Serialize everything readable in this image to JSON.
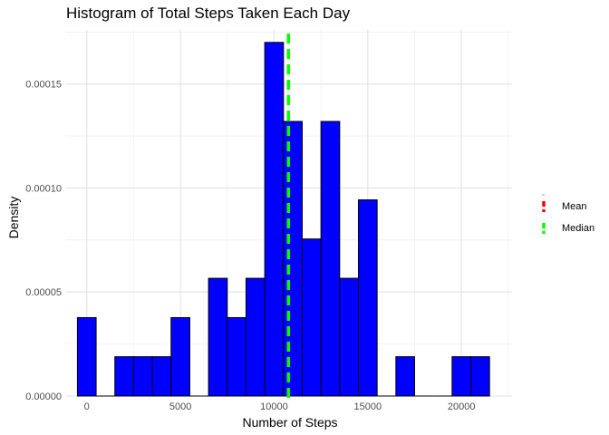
{
  "chart_data": {
    "type": "bar",
    "title": "Histogram of Total Steps Taken Each Day",
    "xlabel": "Number of Steps",
    "ylabel": "Density",
    "xlim": [
      -1100,
      22700
    ],
    "ylim": [
      0,
      0.000176
    ],
    "bin_width": 1000,
    "bin_centers": [
      0,
      2000,
      3000,
      4000,
      5000,
      7000,
      8000,
      9000,
      10000,
      11000,
      12000,
      13000,
      14000,
      15000,
      17000,
      20000,
      21000
    ],
    "values": [
      3.77e-05,
      1.89e-05,
      1.89e-05,
      1.89e-05,
      3.77e-05,
      5.66e-05,
      3.77e-05,
      5.66e-05,
      0.00017,
      0.000132,
      7.55e-05,
      0.000132,
      5.66e-05,
      9.43e-05,
      1.89e-05,
      1.89e-05,
      1.89e-05
    ],
    "x_ticks": [
      0,
      5000,
      10000,
      15000,
      20000
    ],
    "x_tick_labels": [
      "0",
      "5000",
      "10000",
      "15000",
      "20000"
    ],
    "y_ticks": [
      0,
      5e-05,
      0.0001,
      0.00015
    ],
    "y_tick_labels": [
      "0.00000",
      "0.00005",
      "0.00010",
      "0.00015"
    ],
    "grid": true,
    "bar_fill": "#0000ff",
    "bar_outline": "#000000",
    "reference_lines": [
      {
        "name": "Mean",
        "value": 10766,
        "color": "#ff0000",
        "style": "dashed"
      },
      {
        "name": "Median",
        "value": 10765,
        "color": "#00ff00",
        "style": "dashed"
      }
    ],
    "legend": {
      "placement": "right",
      "entries": [
        "Mean",
        "Median"
      ]
    }
  }
}
